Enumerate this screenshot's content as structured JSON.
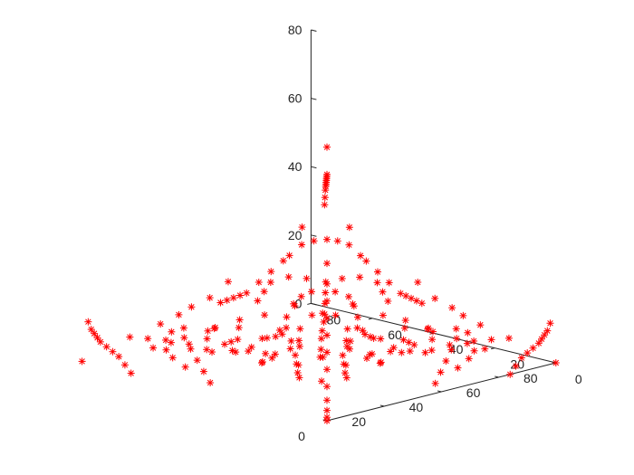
{
  "chart_data": {
    "type": "scatter",
    "title": "",
    "xlabel": "",
    "ylabel": "",
    "zlabel": "",
    "xlim": [
      0,
      80
    ],
    "ylim": [
      0,
      80
    ],
    "zlim": [
      0,
      80
    ],
    "grid": false,
    "marker": "asterisk",
    "marker_color": "#ff0000",
    "axis_color": "#262626",
    "x_ticks": [
      "0",
      "20",
      "40",
      "60",
      "80"
    ],
    "y_ticks": [
      "0",
      "20",
      "40",
      "60",
      "80"
    ],
    "z_ticks": [
      "0",
      "20",
      "40",
      "60",
      "80"
    ],
    "series": [
      {
        "points": [
          [
            0,
            0,
            0
          ],
          [
            80,
            0,
            0
          ],
          [
            0,
            80,
            0
          ],
          [
            0,
            0,
            80
          ],
          [
            27,
            27,
            0
          ],
          [
            0,
            0,
            1
          ],
          [
            0,
            0,
            3
          ],
          [
            0,
            0,
            6
          ],
          [
            0,
            0,
            10
          ],
          [
            0,
            0,
            15
          ],
          [
            0,
            0,
            20
          ],
          [
            0,
            0,
            25
          ],
          [
            0,
            0,
            30
          ],
          [
            0,
            0,
            35
          ],
          [
            0,
            0,
            40
          ],
          [
            0,
            0,
            46
          ],
          [
            0,
            0,
            53
          ],
          [
            64,
            0,
            0
          ],
          [
            66,
            0,
            2
          ],
          [
            68,
            0,
            4
          ],
          [
            70,
            0,
            5
          ],
          [
            72,
            0,
            6
          ],
          [
            74,
            0,
            7
          ],
          [
            75,
            0,
            8
          ],
          [
            76,
            0,
            9
          ],
          [
            77,
            0,
            10
          ],
          [
            78,
            0,
            12
          ],
          [
            0,
            64,
            0
          ],
          [
            0,
            66,
            2
          ],
          [
            0,
            68,
            4
          ],
          [
            0,
            70,
            5
          ],
          [
            0,
            72,
            6
          ],
          [
            0,
            74,
            7
          ],
          [
            0,
            75,
            8
          ],
          [
            0,
            76,
            9
          ],
          [
            0,
            77,
            10
          ],
          [
            0,
            78,
            12
          ],
          [
            0,
            0,
            72
          ],
          [
            1,
            1,
            71
          ],
          [
            2,
            2,
            70
          ],
          [
            3,
            3,
            69
          ],
          [
            4,
            4,
            68
          ],
          [
            5,
            5,
            67
          ],
          [
            6,
            6,
            66
          ],
          [
            8,
            8,
            64
          ],
          [
            10,
            10,
            61
          ],
          [
            12,
            12,
            58
          ],
          [
            40,
            2,
            2
          ],
          [
            44,
            4,
            4
          ],
          [
            48,
            6,
            6
          ],
          [
            52,
            8,
            8
          ],
          [
            56,
            10,
            10
          ],
          [
            58,
            12,
            12
          ],
          [
            50,
            4,
            4
          ],
          [
            56,
            6,
            5
          ],
          [
            60,
            8,
            6
          ],
          [
            62,
            10,
            8
          ],
          [
            2,
            40,
            2
          ],
          [
            4,
            44,
            4
          ],
          [
            6,
            48,
            6
          ],
          [
            8,
            52,
            8
          ],
          [
            10,
            56,
            10
          ],
          [
            12,
            58,
            12
          ],
          [
            4,
            50,
            4
          ],
          [
            6,
            56,
            5
          ],
          [
            8,
            60,
            6
          ],
          [
            10,
            62,
            8
          ],
          [
            30,
            4,
            30
          ],
          [
            34,
            6,
            28
          ],
          [
            38,
            8,
            26
          ],
          [
            42,
            10,
            24
          ],
          [
            46,
            12,
            22
          ],
          [
            26,
            4,
            34
          ],
          [
            22,
            4,
            38
          ],
          [
            18,
            4,
            42
          ],
          [
            4,
            30,
            30
          ],
          [
            6,
            34,
            28
          ],
          [
            8,
            38,
            26
          ],
          [
            10,
            42,
            24
          ],
          [
            12,
            46,
            22
          ],
          [
            4,
            26,
            34
          ],
          [
            4,
            22,
            38
          ],
          [
            4,
            18,
            42
          ],
          [
            20,
            20,
            10
          ],
          [
            22,
            14,
            14
          ],
          [
            14,
            22,
            14
          ],
          [
            24,
            10,
            18
          ],
          [
            10,
            24,
            18
          ],
          [
            26,
            6,
            24
          ],
          [
            6,
            26,
            24
          ],
          [
            16,
            16,
            22
          ],
          [
            12,
            12,
            26
          ],
          [
            10,
            10,
            30
          ],
          [
            8,
            8,
            34
          ],
          [
            6,
            6,
            38
          ],
          [
            14,
            6,
            32
          ],
          [
            6,
            14,
            32
          ],
          [
            18,
            8,
            28
          ],
          [
            8,
            18,
            28
          ],
          [
            30,
            14,
            10
          ],
          [
            14,
            30,
            10
          ],
          [
            34,
            10,
            12
          ],
          [
            10,
            34,
            12
          ],
          [
            36,
            16,
            6
          ],
          [
            16,
            36,
            6
          ],
          [
            28,
            20,
            6
          ],
          [
            20,
            28,
            6
          ],
          [
            24,
            16,
            4
          ],
          [
            16,
            24,
            4
          ],
          [
            32,
            24,
            2
          ],
          [
            24,
            32,
            2
          ],
          [
            40,
            20,
            4
          ],
          [
            20,
            40,
            4
          ],
          [
            44,
            14,
            8
          ],
          [
            14,
            44,
            8
          ],
          [
            38,
            18,
            12
          ],
          [
            18,
            38,
            12
          ],
          [
            36,
            26,
            10
          ],
          [
            26,
            36,
            10
          ],
          [
            30,
            30,
            8
          ],
          [
            34,
            34,
            4
          ],
          [
            40,
            30,
            6
          ],
          [
            30,
            40,
            6
          ],
          [
            20,
            12,
            20
          ],
          [
            12,
            20,
            20
          ],
          [
            26,
            18,
            14
          ],
          [
            18,
            26,
            14
          ],
          [
            28,
            12,
            16
          ],
          [
            12,
            28,
            16
          ],
          [
            18,
            14,
            24
          ],
          [
            14,
            18,
            24
          ],
          [
            24,
            24,
            16
          ],
          [
            28,
            28,
            12
          ],
          [
            32,
            20,
            16
          ],
          [
            20,
            32,
            16
          ],
          [
            36,
            22,
            14
          ],
          [
            22,
            36,
            14
          ],
          [
            42,
            24,
            10
          ],
          [
            24,
            42,
            10
          ],
          [
            46,
            18,
            10
          ],
          [
            18,
            46,
            10
          ],
          [
            48,
            12,
            14
          ],
          [
            12,
            48,
            14
          ],
          [
            50,
            20,
            8
          ],
          [
            20,
            50,
            8
          ],
          [
            52,
            14,
            12
          ],
          [
            14,
            52,
            12
          ],
          [
            16,
            10,
            36
          ],
          [
            10,
            16,
            36
          ],
          [
            20,
            16,
            30
          ],
          [
            16,
            20,
            30
          ],
          [
            24,
            14,
            26
          ],
          [
            14,
            24,
            26
          ],
          [
            22,
            22,
            22
          ],
          [
            30,
            18,
            20
          ],
          [
            18,
            30,
            20
          ],
          [
            36,
            8,
            20
          ],
          [
            8,
            36,
            20
          ],
          [
            40,
            12,
            16
          ],
          [
            12,
            40,
            16
          ],
          [
            44,
            8,
            16
          ],
          [
            8,
            44,
            16
          ],
          [
            38,
            30,
            2
          ],
          [
            30,
            38,
            2
          ],
          [
            46,
            30,
            2
          ],
          [
            30,
            46,
            2
          ],
          [
            50,
            26,
            4
          ],
          [
            26,
            50,
            4
          ],
          [
            54,
            22,
            6
          ],
          [
            22,
            54,
            6
          ],
          [
            56,
            18,
            8
          ],
          [
            18,
            56,
            8
          ],
          [
            58,
            20,
            4
          ],
          [
            20,
            58,
            4
          ],
          [
            60,
            16,
            6
          ],
          [
            16,
            60,
            6
          ],
          [
            62,
            12,
            10
          ],
          [
            12,
            62,
            10
          ],
          [
            64,
            14,
            6
          ],
          [
            14,
            64,
            6
          ],
          [
            66,
            8,
            8
          ],
          [
            8,
            66,
            8
          ],
          [
            68,
            12,
            4
          ],
          [
            12,
            68,
            4
          ],
          [
            70,
            6,
            8
          ],
          [
            6,
            70,
            8
          ],
          [
            60,
            6,
            14
          ],
          [
            6,
            60,
            14
          ],
          [
            54,
            6,
            18
          ],
          [
            6,
            54,
            18
          ],
          [
            48,
            4,
            22
          ],
          [
            4,
            48,
            22
          ],
          [
            42,
            4,
            26
          ],
          [
            4,
            42,
            26
          ],
          [
            36,
            4,
            32
          ],
          [
            4,
            36,
            32
          ],
          [
            32,
            10,
            26
          ],
          [
            10,
            32,
            26
          ],
          [
            28,
            8,
            30
          ],
          [
            8,
            28,
            30
          ],
          [
            24,
            6,
            34
          ],
          [
            6,
            24,
            34
          ],
          [
            20,
            8,
            36
          ],
          [
            8,
            20,
            36
          ],
          [
            16,
            4,
            44
          ],
          [
            4,
            16,
            44
          ],
          [
            12,
            4,
            48
          ],
          [
            4,
            12,
            48
          ],
          [
            10,
            2,
            54
          ],
          [
            2,
            10,
            54
          ],
          [
            8,
            4,
            50
          ],
          [
            4,
            8,
            50
          ],
          [
            44,
            36,
            2
          ],
          [
            36,
            44,
            2
          ],
          [
            50,
            32,
            2
          ],
          [
            32,
            50,
            2
          ],
          [
            56,
            28,
            2
          ],
          [
            28,
            56,
            2
          ],
          [
            60,
            24,
            2
          ],
          [
            24,
            60,
            2
          ]
        ]
      }
    ]
  }
}
